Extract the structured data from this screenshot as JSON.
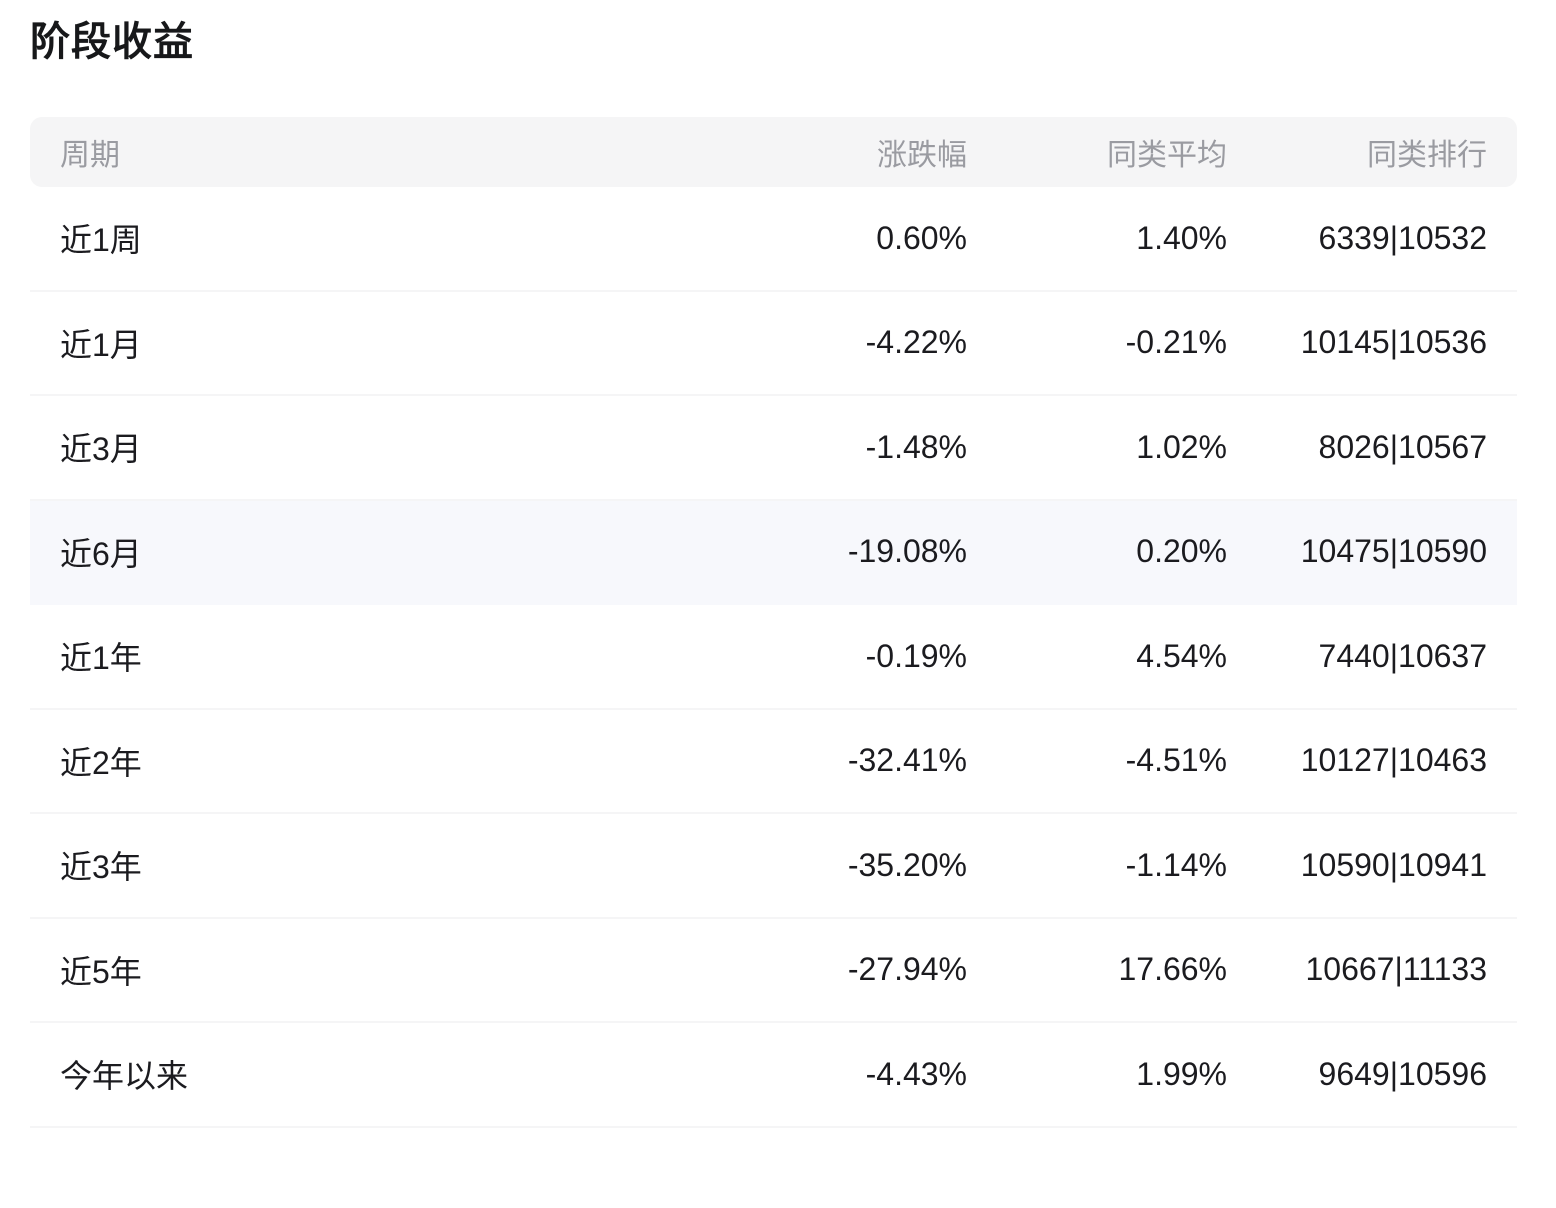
{
  "page": {
    "title": "阶段收益"
  },
  "table": {
    "columns": [
      {
        "key": "period",
        "label": "周期"
      },
      {
        "key": "change",
        "label": "涨跌幅"
      },
      {
        "key": "category_avg",
        "label": "同类平均"
      },
      {
        "key": "category_rank",
        "label": "同类排行"
      }
    ],
    "rows": [
      {
        "period": "近1周",
        "change": "0.60%",
        "category_avg": "1.40%",
        "category_rank": "6339|10532",
        "highlighted": false
      },
      {
        "period": "近1月",
        "change": "-4.22%",
        "category_avg": "-0.21%",
        "category_rank": "10145|10536",
        "highlighted": false
      },
      {
        "period": "近3月",
        "change": "-1.48%",
        "category_avg": "1.02%",
        "category_rank": "8026|10567",
        "highlighted": false
      },
      {
        "period": "近6月",
        "change": "-19.08%",
        "category_avg": "0.20%",
        "category_rank": "10475|10590",
        "highlighted": true
      },
      {
        "period": "近1年",
        "change": "-0.19%",
        "category_avg": "4.54%",
        "category_rank": "7440|10637",
        "highlighted": false
      },
      {
        "period": "近2年",
        "change": "-32.41%",
        "category_avg": "-4.51%",
        "category_rank": "10127|10463",
        "highlighted": false
      },
      {
        "period": "近3年",
        "change": "-35.20%",
        "category_avg": "-1.14%",
        "category_rank": "10590|10941",
        "highlighted": false
      },
      {
        "period": "近5年",
        "change": "-27.94%",
        "category_avg": "17.66%",
        "category_rank": "10667|11133",
        "highlighted": false
      },
      {
        "period": "今年以来",
        "change": "-4.43%",
        "category_avg": "1.99%",
        "category_rank": "9649|10596",
        "highlighted": false
      }
    ],
    "colors": {
      "header_bg": "#f5f5f6",
      "header_text": "#9a9ba1",
      "row_text": "#1b1b1f",
      "highlight_row_bg": "#f7f8fc",
      "divider": "#f5f5f6",
      "title_text": "#17181a"
    }
  }
}
